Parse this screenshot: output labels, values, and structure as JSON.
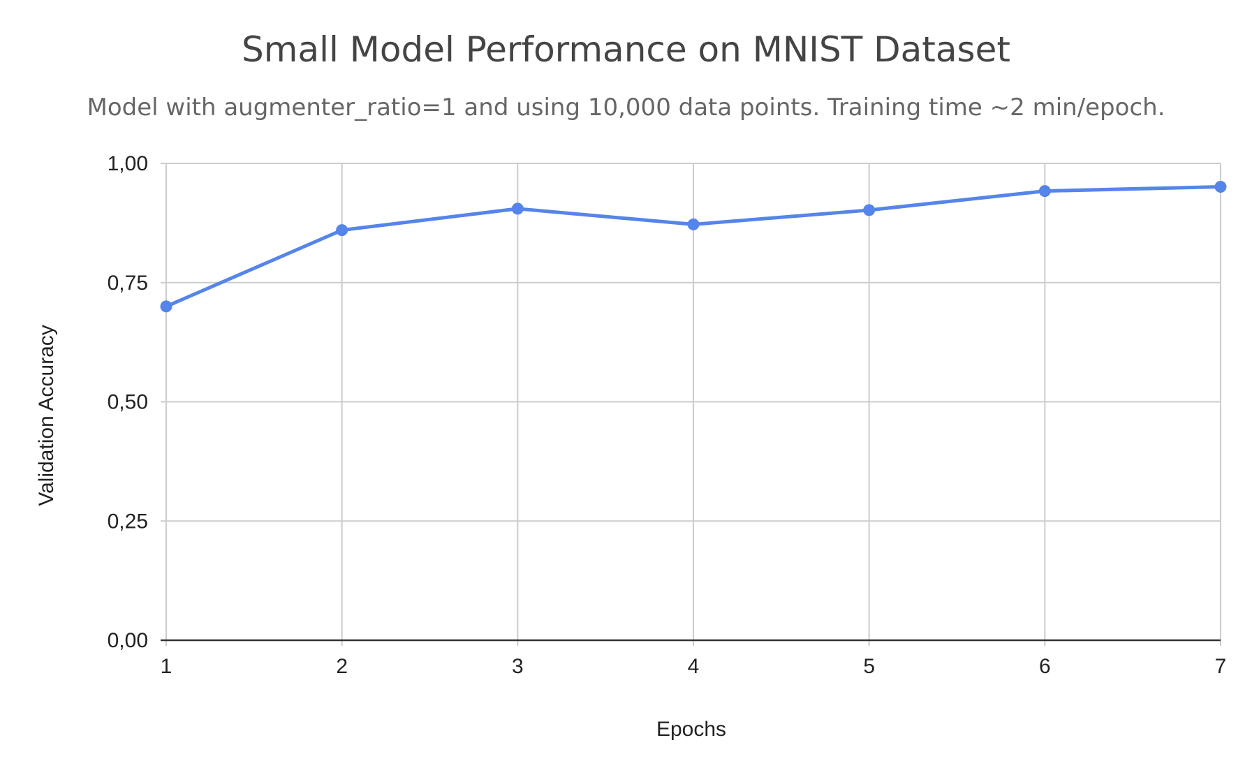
{
  "chart_data": {
    "type": "line",
    "title": "Small Model Performance on MNIST Dataset",
    "subtitle": "Model with augmenter_ratio=1 and using 10,000 data points. Training time ~2 min/epoch.",
    "xlabel": "Epochs",
    "ylabel": "Validation Accuracy",
    "x": [
      1,
      2,
      3,
      4,
      5,
      6,
      7
    ],
    "x_tick_labels": [
      "1",
      "2",
      "3",
      "4",
      "5",
      "6",
      "7"
    ],
    "y_ticks": [
      0,
      0.25,
      0.5,
      0.75,
      1.0
    ],
    "y_tick_labels": [
      "0,00",
      "0,25",
      "0,50",
      "0,75",
      "1,00"
    ],
    "ylim": [
      0,
      1.0
    ],
    "xlim": [
      1,
      7
    ],
    "grid": true,
    "series": [
      {
        "values": [
          0.7,
          0.86,
          0.905,
          0.872,
          0.902,
          0.942,
          0.951
        ],
        "color": "#5585ea"
      }
    ]
  }
}
